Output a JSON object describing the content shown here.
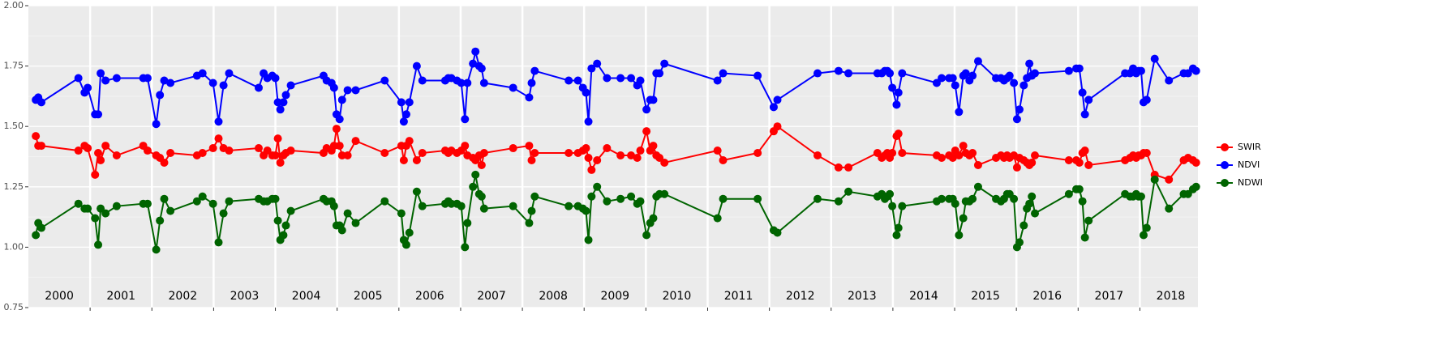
{
  "chart_data": {
    "type": "line",
    "x": [
      2000.12,
      2000.16,
      2000.21,
      2000.81,
      2000.91,
      2000.96,
      2001.08,
      2001.13,
      2001.17,
      2001.25,
      2001.43,
      2001.86,
      2001.93,
      2002.07,
      2002.13,
      2002.2,
      2002.3,
      2002.73,
      2002.82,
      2002.99,
      2003.08,
      2003.16,
      2003.25,
      2003.73,
      2003.81,
      2003.87,
      2003.95,
      2004.0,
      2004.04,
      2004.08,
      2004.13,
      2004.17,
      2004.25,
      2004.78,
      2004.83,
      2004.91,
      2004.95,
      2004.99,
      2005.04,
      2005.08,
      2005.17,
      2005.3,
      2005.77,
      2006.04,
      2006.08,
      2006.12,
      2006.17,
      2006.29,
      2006.38,
      2006.75,
      2006.8,
      2006.85,
      2006.94,
      2007.01,
      2007.07,
      2007.11,
      2007.2,
      2007.24,
      2007.3,
      2007.34,
      2007.38,
      2007.85,
      2008.11,
      2008.15,
      2008.2,
      2008.75,
      2008.9,
      2008.98,
      2009.03,
      2009.07,
      2009.12,
      2009.21,
      2009.37,
      2009.59,
      2009.76,
      2009.86,
      2009.91,
      2010.01,
      2010.07,
      2010.12,
      2010.17,
      2010.22,
      2010.3,
      2011.16,
      2011.25,
      2011.81,
      2012.07,
      2012.13,
      2012.78,
      2013.12,
      2013.28,
      2013.75,
      2013.82,
      2013.87,
      2013.91,
      2013.95,
      2013.99,
      2014.06,
      2014.09,
      2014.15,
      2014.71,
      2014.79,
      2014.91,
      2014.97,
      2015.01,
      2015.07,
      2015.14,
      2015.18,
      2015.24,
      2015.29,
      2015.38,
      2015.67,
      2015.75,
      2015.8,
      2015.85,
      2015.89,
      2015.96,
      2016.01,
      2016.05,
      2016.12,
      2016.17,
      2016.21,
      2016.25,
      2016.3,
      2016.85,
      2016.97,
      2017.02,
      2017.07,
      2017.11,
      2017.17,
      2017.76,
      2017.84,
      2017.89,
      2017.94,
      2017.98,
      2018.02,
      2018.06,
      2018.11,
      2018.24,
      2018.47,
      2018.71,
      2018.78,
      2018.86,
      2018.91
    ],
    "series": [
      {
        "name": "SWIR",
        "color": "#ff0000",
        "values": [
          1.46,
          1.42,
          1.42,
          1.4,
          1.42,
          1.41,
          1.3,
          1.39,
          1.36,
          1.42,
          1.38,
          1.42,
          1.4,
          1.38,
          1.37,
          1.35,
          1.39,
          1.38,
          1.39,
          1.41,
          1.45,
          1.41,
          1.4,
          1.41,
          1.38,
          1.4,
          1.38,
          1.38,
          1.45,
          1.35,
          1.38,
          1.39,
          1.4,
          1.39,
          1.41,
          1.4,
          1.42,
          1.49,
          1.42,
          1.38,
          1.38,
          1.44,
          1.39,
          1.42,
          1.36,
          1.42,
          1.44,
          1.36,
          1.39,
          1.4,
          1.39,
          1.4,
          1.39,
          1.4,
          1.42,
          1.38,
          1.37,
          1.36,
          1.38,
          1.34,
          1.39,
          1.41,
          1.42,
          1.36,
          1.39,
          1.39,
          1.39,
          1.4,
          1.41,
          1.37,
          1.32,
          1.36,
          1.41,
          1.38,
          1.38,
          1.37,
          1.4,
          1.48,
          1.4,
          1.42,
          1.38,
          1.37,
          1.35,
          1.4,
          1.36,
          1.39,
          1.48,
          1.5,
          1.38,
          1.33,
          1.33,
          1.39,
          1.37,
          1.38,
          1.39,
          1.37,
          1.39,
          1.46,
          1.47,
          1.39,
          1.38,
          1.37,
          1.38,
          1.37,
          1.4,
          1.38,
          1.42,
          1.39,
          1.38,
          1.39,
          1.34,
          1.37,
          1.38,
          1.37,
          1.38,
          1.37,
          1.38,
          1.33,
          1.37,
          1.36,
          1.35,
          1.34,
          1.35,
          1.38,
          1.36,
          1.36,
          1.35,
          1.39,
          1.4,
          1.34,
          1.36,
          1.37,
          1.38,
          1.37,
          1.38,
          1.38,
          1.39,
          1.39,
          1.3,
          1.28,
          1.36,
          1.37,
          1.36,
          1.35
        ]
      },
      {
        "name": "NDVI",
        "color": "#0000ff",
        "values": [
          1.61,
          1.62,
          1.6,
          1.7,
          1.64,
          1.66,
          1.55,
          1.55,
          1.72,
          1.69,
          1.7,
          1.7,
          1.7,
          1.51,
          1.63,
          1.69,
          1.68,
          1.71,
          1.72,
          1.68,
          1.52,
          1.67,
          1.72,
          1.66,
          1.72,
          1.7,
          1.71,
          1.7,
          1.6,
          1.57,
          1.6,
          1.63,
          1.67,
          1.71,
          1.69,
          1.68,
          1.66,
          1.55,
          1.53,
          1.61,
          1.65,
          1.65,
          1.69,
          1.6,
          1.52,
          1.55,
          1.6,
          1.75,
          1.69,
          1.69,
          1.7,
          1.7,
          1.69,
          1.68,
          1.53,
          1.68,
          1.76,
          1.81,
          1.75,
          1.74,
          1.68,
          1.66,
          1.62,
          1.68,
          1.73,
          1.69,
          1.69,
          1.66,
          1.64,
          1.52,
          1.74,
          1.76,
          1.7,
          1.7,
          1.7,
          1.67,
          1.69,
          1.57,
          1.61,
          1.61,
          1.72,
          1.72,
          1.76,
          1.69,
          1.72,
          1.71,
          1.58,
          1.61,
          1.72,
          1.73,
          1.72,
          1.72,
          1.72,
          1.73,
          1.73,
          1.72,
          1.66,
          1.59,
          1.64,
          1.72,
          1.68,
          1.7,
          1.7,
          1.7,
          1.67,
          1.56,
          1.71,
          1.72,
          1.69,
          1.71,
          1.77,
          1.7,
          1.7,
          1.69,
          1.7,
          1.71,
          1.68,
          1.53,
          1.57,
          1.67,
          1.7,
          1.76,
          1.71,
          1.72,
          1.73,
          1.74,
          1.74,
          1.64,
          1.55,
          1.61,
          1.72,
          1.72,
          1.74,
          1.72,
          1.73,
          1.73,
          1.6,
          1.61,
          1.78,
          1.69,
          1.72,
          1.72,
          1.74,
          1.73
        ]
      },
      {
        "name": "NDWI",
        "color": "#006400",
        "values": [
          1.05,
          1.1,
          1.08,
          1.18,
          1.16,
          1.16,
          1.12,
          1.01,
          1.16,
          1.14,
          1.17,
          1.18,
          1.18,
          0.99,
          1.11,
          1.2,
          1.15,
          1.19,
          1.21,
          1.18,
          1.02,
          1.14,
          1.19,
          1.2,
          1.19,
          1.19,
          1.2,
          1.2,
          1.11,
          1.03,
          1.05,
          1.09,
          1.15,
          1.2,
          1.19,
          1.19,
          1.17,
          1.09,
          1.09,
          1.07,
          1.14,
          1.1,
          1.19,
          1.14,
          1.03,
          1.01,
          1.06,
          1.23,
          1.17,
          1.18,
          1.19,
          1.18,
          1.18,
          1.17,
          1.0,
          1.1,
          1.25,
          1.3,
          1.22,
          1.21,
          1.16,
          1.17,
          1.1,
          1.15,
          1.21,
          1.17,
          1.17,
          1.16,
          1.15,
          1.03,
          1.21,
          1.25,
          1.19,
          1.2,
          1.21,
          1.18,
          1.19,
          1.05,
          1.1,
          1.12,
          1.21,
          1.22,
          1.22,
          1.12,
          1.2,
          1.2,
          1.07,
          1.06,
          1.2,
          1.19,
          1.23,
          1.21,
          1.22,
          1.2,
          1.21,
          1.22,
          1.17,
          1.05,
          1.08,
          1.17,
          1.19,
          1.2,
          1.2,
          1.2,
          1.18,
          1.05,
          1.12,
          1.19,
          1.19,
          1.2,
          1.25,
          1.2,
          1.19,
          1.2,
          1.22,
          1.22,
          1.2,
          1.0,
          1.02,
          1.09,
          1.16,
          1.18,
          1.21,
          1.14,
          1.22,
          1.24,
          1.24,
          1.19,
          1.04,
          1.11,
          1.22,
          1.21,
          1.21,
          1.22,
          1.21,
          1.21,
          1.05,
          1.08,
          1.28,
          1.16,
          1.22,
          1.22,
          1.24,
          1.25
        ]
      }
    ],
    "xlim": [
      2000,
      2018.94
    ],
    "xticks": [
      2001,
      2002,
      2003,
      2004,
      2005,
      2006,
      2007,
      2008,
      2009,
      2010,
      2011,
      2012,
      2013,
      2014,
      2015,
      2016,
      2017,
      2018
    ],
    "year_labels": [
      2000,
      2001,
      2002,
      2003,
      2004,
      2005,
      2006,
      2007,
      2008,
      2009,
      2010,
      2011,
      2012,
      2013,
      2014,
      2015,
      2016,
      2017,
      2018
    ],
    "ylim": [
      0.75,
      2.0
    ],
    "yticks": [
      0.75,
      {
        "value": 1.0,
        "label": "1.00"
      },
      1.25,
      {
        "value": 1.5,
        "label": "1.50"
      },
      1.75,
      {
        "value": 2.0,
        "label": "2.00"
      }
    ],
    "grid": true,
    "legend": "right"
  }
}
